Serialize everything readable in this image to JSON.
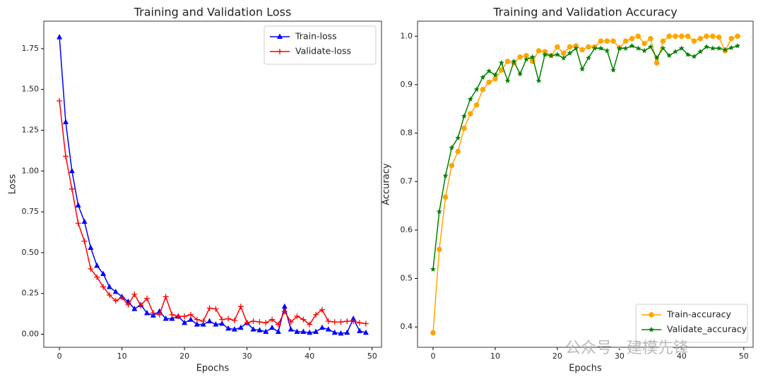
{
  "chart_data": [
    {
      "type": "line",
      "title": "Training and Validation Loss",
      "xlabel": "Epochs",
      "ylabel": "Loss",
      "x": [
        0,
        1,
        2,
        3,
        4,
        5,
        6,
        7,
        8,
        9,
        10,
        11,
        12,
        13,
        14,
        15,
        16,
        17,
        18,
        19,
        20,
        21,
        22,
        23,
        24,
        25,
        26,
        27,
        28,
        29,
        30,
        31,
        32,
        33,
        34,
        35,
        36,
        37,
        38,
        39,
        40,
        41,
        42,
        43,
        44,
        45,
        46,
        47,
        48,
        49
      ],
      "xlim": [
        -2.5,
        51.5
      ],
      "xticks": [
        0,
        10,
        20,
        30,
        40,
        50
      ],
      "ylim": [
        -0.08,
        1.918
      ],
      "yticks": [
        {
          "value": 0,
          "label": "0.00"
        },
        {
          "value": 0.25,
          "label": "0.25"
        },
        {
          "value": 0.5,
          "label": "0.50"
        },
        {
          "value": 0.75,
          "label": "0.75"
        },
        {
          "value": 1,
          "label": "1.00"
        },
        {
          "value": 1.25,
          "label": "1.25"
        },
        {
          "value": 1.5,
          "label": "1.50"
        },
        {
          "value": 1.75,
          "label": "1.75"
        }
      ],
      "legend": "upper right",
      "series": [
        {
          "name": "Train-loss",
          "color": "#0000ff",
          "marker": "triangle",
          "values": [
            1.82,
            1.3,
            1.0,
            0.79,
            0.69,
            0.53,
            0.42,
            0.37,
            0.29,
            0.26,
            0.23,
            0.2,
            0.155,
            0.18,
            0.13,
            0.115,
            0.14,
            0.095,
            0.095,
            0.11,
            0.07,
            0.09,
            0.06,
            0.06,
            0.08,
            0.06,
            0.065,
            0.035,
            0.03,
            0.04,
            0.07,
            0.03,
            0.025,
            0.015,
            0.04,
            0.015,
            0.17,
            0.03,
            0.015,
            0.015,
            0.01,
            0.015,
            0.04,
            0.03,
            0.01,
            0.005,
            0.01,
            0.095,
            0.02,
            0.01
          ]
        },
        {
          "name": "Validate-loss",
          "color": "#ff0000",
          "marker": "plus",
          "values": [
            1.43,
            1.09,
            0.89,
            0.68,
            0.57,
            0.4,
            0.35,
            0.29,
            0.24,
            0.205,
            0.225,
            0.18,
            0.245,
            0.175,
            0.22,
            0.13,
            0.12,
            0.23,
            0.12,
            0.11,
            0.11,
            0.12,
            0.09,
            0.08,
            0.16,
            0.155,
            0.09,
            0.095,
            0.085,
            0.17,
            0.07,
            0.08,
            0.075,
            0.07,
            0.09,
            0.06,
            0.14,
            0.075,
            0.11,
            0.09,
            0.06,
            0.12,
            0.15,
            0.08,
            0.075,
            0.075,
            0.08,
            0.08,
            0.07,
            0.065
          ]
        }
      ]
    },
    {
      "type": "line",
      "title": "Training and Validation Accuracy",
      "xlabel": "Epochs",
      "ylabel": "Accuracy",
      "x": [
        0,
        1,
        2,
        3,
        4,
        5,
        6,
        7,
        8,
        9,
        10,
        11,
        12,
        13,
        14,
        15,
        16,
        17,
        18,
        19,
        20,
        21,
        22,
        23,
        24,
        25,
        26,
        27,
        28,
        29,
        30,
        31,
        32,
        33,
        34,
        35,
        36,
        37,
        38,
        39,
        40,
        41,
        42,
        43,
        44,
        45,
        46,
        47,
        48,
        49
      ],
      "xlim": [
        -2.5,
        51.5
      ],
      "xticks": [
        0,
        10,
        20,
        30,
        40,
        50
      ],
      "ylim": [
        0.358,
        1.031
      ],
      "yticks": [
        0.4,
        0.5,
        0.6,
        0.7,
        0.8,
        0.9,
        {
          "value": 1,
          "label": "1.0"
        }
      ],
      "legend": "lower right",
      "series": [
        {
          "name": "Train-accuracy",
          "color": "#ffa500",
          "marker": "circle",
          "values": [
            0.388,
            0.56,
            0.668,
            0.733,
            0.762,
            0.81,
            0.84,
            0.858,
            0.89,
            0.905,
            0.912,
            0.93,
            0.948,
            0.945,
            0.957,
            0.96,
            0.948,
            0.97,
            0.968,
            0.96,
            0.978,
            0.965,
            0.978,
            0.98,
            0.972,
            0.978,
            0.978,
            0.99,
            0.99,
            0.99,
            0.976,
            0.99,
            0.995,
            1.0,
            0.985,
            0.995,
            0.945,
            0.99,
            1.0,
            1.0,
            1.0,
            1.0,
            0.99,
            0.995,
            1.0,
            1.0,
            0.998,
            0.97,
            0.995,
            1.0
          ]
        },
        {
          "name": "Validate_accuracy",
          "color": "#008000",
          "marker": "star",
          "values": [
            0.519,
            0.638,
            0.712,
            0.77,
            0.79,
            0.835,
            0.87,
            0.89,
            0.915,
            0.928,
            0.92,
            0.945,
            0.908,
            0.948,
            0.922,
            0.952,
            0.957,
            0.908,
            0.962,
            0.96,
            0.962,
            0.955,
            0.965,
            0.975,
            0.932,
            0.955,
            0.975,
            0.975,
            0.97,
            0.93,
            0.975,
            0.975,
            0.98,
            0.975,
            0.97,
            0.978,
            0.955,
            0.975,
            0.96,
            0.968,
            0.975,
            0.962,
            0.958,
            0.968,
            0.978,
            0.975,
            0.975,
            0.972,
            0.976,
            0.98
          ]
        }
      ]
    }
  ],
  "watermark": "公众号 · 建模先锋"
}
